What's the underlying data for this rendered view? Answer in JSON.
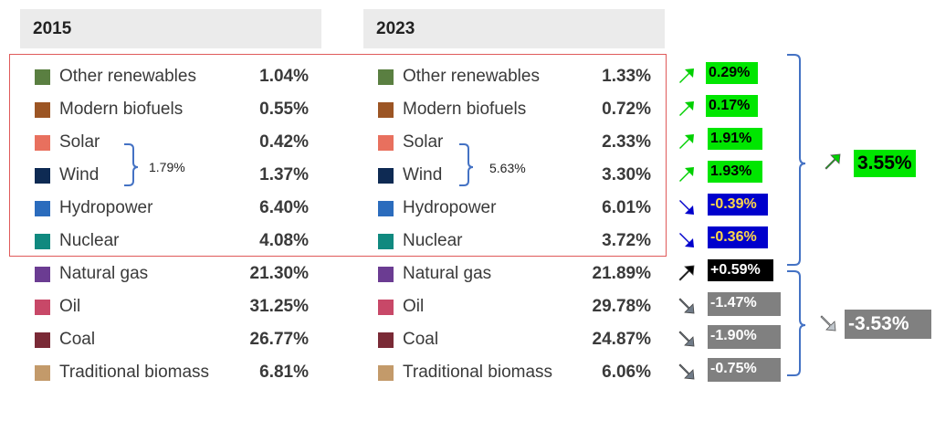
{
  "chart_data": {
    "type": "table",
    "columns": [
      "2015",
      "2023"
    ],
    "rows": [
      {
        "label": "Other renewables",
        "color": "#5a7f41",
        "v2015": "1.04%",
        "v2023": "1.33%",
        "change": "0.29%",
        "change_style": "up"
      },
      {
        "label": "Modern biofuels",
        "color": "#9c5524",
        "v2015": "0.55%",
        "v2023": "0.72%",
        "change": "0.17%",
        "change_style": "up"
      },
      {
        "label": "Solar",
        "color": "#e8705e",
        "v2015": "0.42%",
        "v2023": "2.33%",
        "change": "1.91%",
        "change_style": "up"
      },
      {
        "label": "Wind",
        "color": "#0e2a53",
        "v2015": "1.37%",
        "v2023": "3.30%",
        "change": "1.93%",
        "change_style": "up"
      },
      {
        "label": "Hydropower",
        "color": "#2b6cbd",
        "v2015": "6.40%",
        "v2023": "6.01%",
        "change": "-0.39%",
        "change_style": "down-blue"
      },
      {
        "label": "Nuclear",
        "color": "#10897f",
        "v2015": "4.08%",
        "v2023": "3.72%",
        "change": "-0.36%",
        "change_style": "down-blue"
      },
      {
        "label": "Natural gas",
        "color": "#6b3c92",
        "v2015": "21.30%",
        "v2023": "21.89%",
        "change": "+0.59%",
        "change_style": "up-black"
      },
      {
        "label": "Oil",
        "color": "#c84868",
        "v2015": "31.25%",
        "v2023": "29.78%",
        "change": "-1.47%",
        "change_style": "down-gray"
      },
      {
        "label": "Coal",
        "color": "#7a2a36",
        "v2015": "26.77%",
        "v2023": "24.87%",
        "change": "-1.90%",
        "change_style": "down-gray"
      },
      {
        "label": "Traditional biomass",
        "color": "#c39a6a",
        "v2015": "6.81%",
        "v2023": "6.06%",
        "change": "-0.75%",
        "change_style": "down-gray"
      }
    ],
    "solar_wind_sum": {
      "2015": "1.79%",
      "2023": "5.63%"
    },
    "group_totals": {
      "low_carbon": "3.55%",
      "fossil_and_biomass": "-3.53%"
    },
    "colors": {
      "up": "#00e600",
      "down_blue": "#0000cc",
      "gray": "#808080",
      "black": "#000000",
      "bracket": "#4472c4",
      "frame": "#e05a5a"
    }
  }
}
